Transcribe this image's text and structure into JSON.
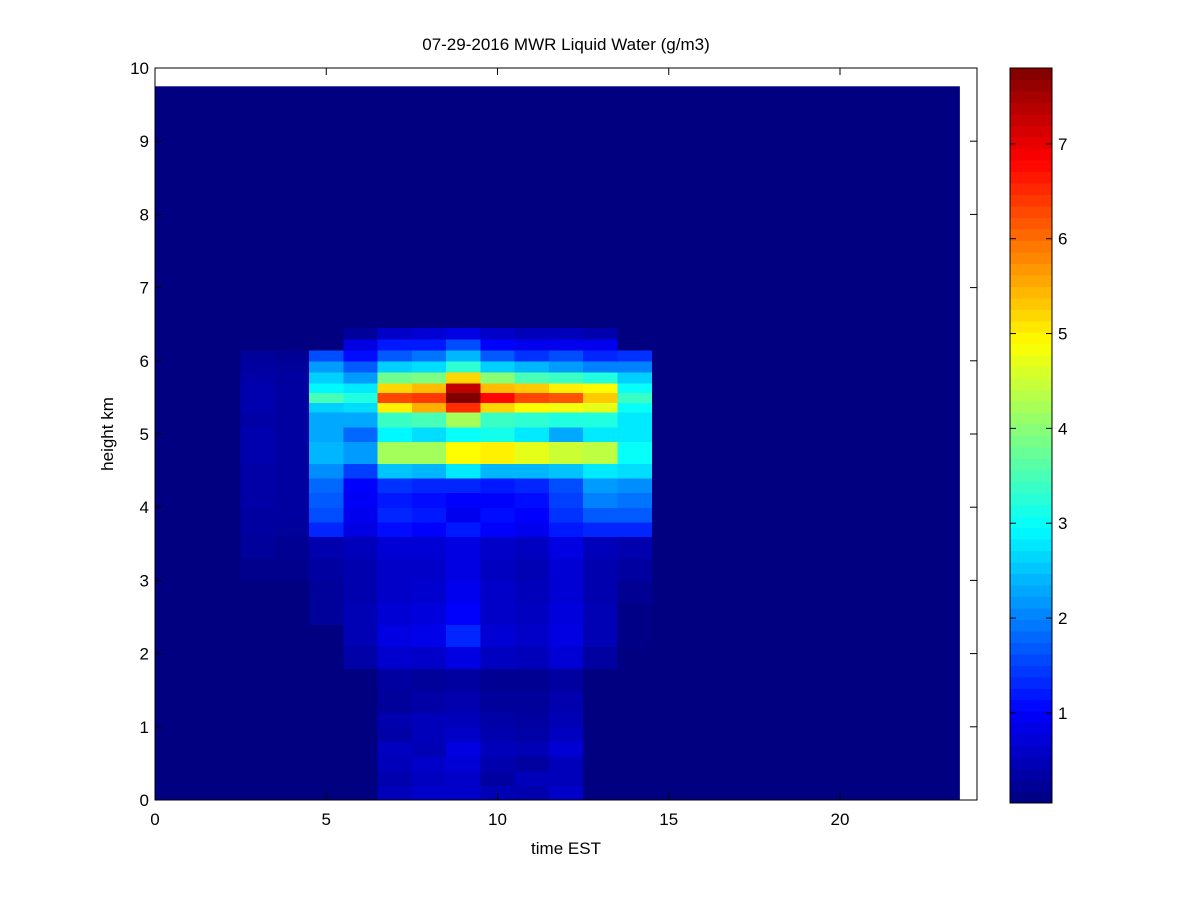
{
  "chart_data": {
    "type": "heatmap",
    "title": "07-29-2016 MWR Liquid Water (g/m3)",
    "xlabel": "time EST",
    "ylabel": "height km",
    "xlim": [
      0,
      24
    ],
    "ylim": [
      0,
      10
    ],
    "x_ticks": [
      0,
      5,
      10,
      15,
      20
    ],
    "y_ticks": [
      0,
      1,
      2,
      3,
      4,
      5,
      6,
      7,
      8,
      9,
      10
    ],
    "colorbar": {
      "colormap": "jet",
      "range": [
        0.05,
        7.8
      ],
      "ticks": [
        1,
        2,
        3,
        4,
        5,
        6,
        7
      ]
    },
    "data_extent": {
      "x": [
        0,
        23.5
      ],
      "y": [
        0,
        9.75
      ]
    },
    "background_value": 0.05,
    "x_centers": [
      3,
      4,
      5,
      6,
      7,
      8,
      9,
      10,
      11,
      12,
      13,
      14
    ],
    "x_cell_width": 1,
    "y_bands": [
      {
        "y0": 0.0,
        "y1": 0.2,
        "values": [
          0.05,
          0.05,
          0.05,
          0.05,
          0.5,
          0.6,
          0.6,
          0.45,
          0.4,
          0.6,
          0.05,
          0.05
        ]
      },
      {
        "y0": 0.2,
        "y1": 0.4,
        "values": [
          0.05,
          0.05,
          0.05,
          0.05,
          0.4,
          0.55,
          0.6,
          0.3,
          0.5,
          0.5,
          0.05,
          0.05
        ]
      },
      {
        "y0": 0.4,
        "y1": 0.6,
        "values": [
          0.05,
          0.05,
          0.05,
          0.05,
          0.5,
          0.6,
          0.7,
          0.4,
          0.3,
          0.5,
          0.05,
          0.05
        ]
      },
      {
        "y0": 0.6,
        "y1": 0.8,
        "values": [
          0.05,
          0.05,
          0.05,
          0.05,
          0.55,
          0.45,
          0.8,
          0.5,
          0.45,
          0.7,
          0.05,
          0.05
        ]
      },
      {
        "y0": 0.8,
        "y1": 1.0,
        "values": [
          0.05,
          0.05,
          0.05,
          0.05,
          0.35,
          0.5,
          0.6,
          0.4,
          0.35,
          0.55,
          0.05,
          0.05
        ]
      },
      {
        "y0": 1.0,
        "y1": 1.2,
        "values": [
          0.05,
          0.05,
          0.05,
          0.05,
          0.4,
          0.5,
          0.5,
          0.35,
          0.3,
          0.45,
          0.05,
          0.05
        ]
      },
      {
        "y0": 1.2,
        "y1": 1.5,
        "values": [
          0.05,
          0.05,
          0.05,
          0.05,
          0.25,
          0.35,
          0.4,
          0.25,
          0.25,
          0.4,
          0.05,
          0.05
        ]
      },
      {
        "y0": 1.5,
        "y1": 1.8,
        "values": [
          0.05,
          0.05,
          0.05,
          0.05,
          0.3,
          0.25,
          0.3,
          0.2,
          0.2,
          0.3,
          0.05,
          0.05
        ]
      },
      {
        "y0": 1.8,
        "y1": 2.1,
        "values": [
          0.05,
          0.05,
          0.05,
          0.35,
          0.65,
          0.6,
          0.8,
          0.55,
          0.5,
          0.7,
          0.3,
          0.05
        ]
      },
      {
        "y0": 2.1,
        "y1": 2.4,
        "values": [
          0.05,
          0.05,
          0.05,
          0.45,
          0.8,
          0.85,
          1.3,
          0.7,
          0.6,
          0.8,
          0.45,
          0.1
        ]
      },
      {
        "y0": 2.4,
        "y1": 2.7,
        "values": [
          0.05,
          0.05,
          0.25,
          0.45,
          0.7,
          0.75,
          1.0,
          0.6,
          0.55,
          0.75,
          0.45,
          0.1
        ]
      },
      {
        "y0": 2.7,
        "y1": 3.0,
        "values": [
          0.05,
          0.05,
          0.25,
          0.4,
          0.6,
          0.65,
          0.9,
          0.6,
          0.5,
          0.7,
          0.4,
          0.2
        ]
      },
      {
        "y0": 3.0,
        "y1": 3.3,
        "values": [
          0.15,
          0.15,
          0.3,
          0.4,
          0.6,
          0.6,
          0.8,
          0.55,
          0.45,
          0.7,
          0.4,
          0.3
        ]
      },
      {
        "y0": 3.3,
        "y1": 3.6,
        "values": [
          0.25,
          0.2,
          0.4,
          0.5,
          0.7,
          0.7,
          0.8,
          0.6,
          0.55,
          0.8,
          0.5,
          0.4
        ]
      },
      {
        "y0": 3.6,
        "y1": 3.8,
        "values": [
          0.3,
          0.25,
          1.3,
          0.8,
          1.1,
          1.0,
          1.2,
          1.0,
          0.9,
          1.2,
          1.3,
          1.3
        ]
      },
      {
        "y0": 3.8,
        "y1": 4.0,
        "values": [
          0.3,
          0.3,
          1.6,
          0.9,
          1.3,
          1.2,
          0.9,
          1.1,
          1.0,
          1.4,
          1.7,
          1.7
        ]
      },
      {
        "y0": 4.0,
        "y1": 4.2,
        "values": [
          0.35,
          0.3,
          1.7,
          0.95,
          1.2,
          1.1,
          1.0,
          1.0,
          1.1,
          1.5,
          2.0,
          1.9
        ]
      },
      {
        "y0": 4.2,
        "y1": 4.4,
        "values": [
          0.35,
          0.3,
          1.8,
          1.0,
          1.4,
          1.3,
          1.3,
          1.2,
          1.3,
          1.6,
          2.2,
          2.1
        ]
      },
      {
        "y0": 4.4,
        "y1": 4.6,
        "values": [
          0.35,
          0.3,
          2.1,
          1.5,
          2.5,
          2.4,
          2.8,
          2.4,
          2.4,
          2.5,
          2.8,
          2.7
        ]
      },
      {
        "y0": 4.6,
        "y1": 4.9,
        "values": [
          0.4,
          0.3,
          2.4,
          2.2,
          4.2,
          4.2,
          4.9,
          5.0,
          4.7,
          4.5,
          4.4,
          3.0
        ]
      },
      {
        "y0": 4.9,
        "y1": 5.1,
        "values": [
          0.4,
          0.3,
          2.3,
          1.8,
          2.9,
          2.7,
          3.0,
          3.1,
          2.8,
          2.3,
          2.8,
          2.8
        ]
      },
      {
        "y0": 5.1,
        "y1": 5.3,
        "values": [
          0.35,
          0.3,
          2.3,
          2.3,
          3.4,
          3.5,
          4.2,
          3.4,
          3.3,
          3.2,
          3.2,
          2.8
        ]
      },
      {
        "y0": 5.3,
        "y1": 5.43,
        "values": [
          0.4,
          0.3,
          2.6,
          2.7,
          5.0,
          5.5,
          6.5,
          5.2,
          4.9,
          4.8,
          4.7,
          3.0
        ]
      },
      {
        "y0": 5.43,
        "y1": 5.57,
        "values": [
          0.4,
          0.3,
          3.5,
          3.2,
          6.3,
          6.4,
          7.8,
          6.8,
          6.3,
          6.2,
          5.3,
          3.4
        ]
      },
      {
        "y0": 5.57,
        "y1": 5.7,
        "values": [
          0.4,
          0.3,
          2.9,
          2.8,
          5.2,
          5.4,
          7.3,
          5.4,
          5.3,
          5.0,
          4.9,
          3.0
        ]
      },
      {
        "y0": 5.7,
        "y1": 5.85,
        "values": [
          0.35,
          0.3,
          2.6,
          2.2,
          3.8,
          3.9,
          5.2,
          4.0,
          3.5,
          3.4,
          3.2,
          2.6
        ]
      },
      {
        "y0": 5.85,
        "y1": 6.0,
        "values": [
          0.3,
          0.25,
          2.2,
          1.7,
          2.6,
          2.7,
          3.3,
          2.6,
          2.4,
          2.2,
          2.0,
          2.0
        ]
      },
      {
        "y0": 6.0,
        "y1": 6.15,
        "values": [
          0.25,
          0.2,
          1.6,
          1.1,
          1.7,
          1.9,
          2.4,
          1.7,
          1.4,
          1.6,
          1.3,
          1.4
        ]
      },
      {
        "y0": 6.15,
        "y1": 6.3,
        "values": [
          0.05,
          0.05,
          0.05,
          0.8,
          1.2,
          1.2,
          1.6,
          1.0,
          0.9,
          0.9,
          0.9,
          0.05
        ]
      },
      {
        "y0": 6.3,
        "y1": 6.45,
        "values": [
          0.05,
          0.05,
          0.05,
          0.25,
          0.6,
          0.7,
          0.8,
          0.6,
          0.5,
          0.5,
          0.4,
          0.05
        ]
      }
    ]
  }
}
